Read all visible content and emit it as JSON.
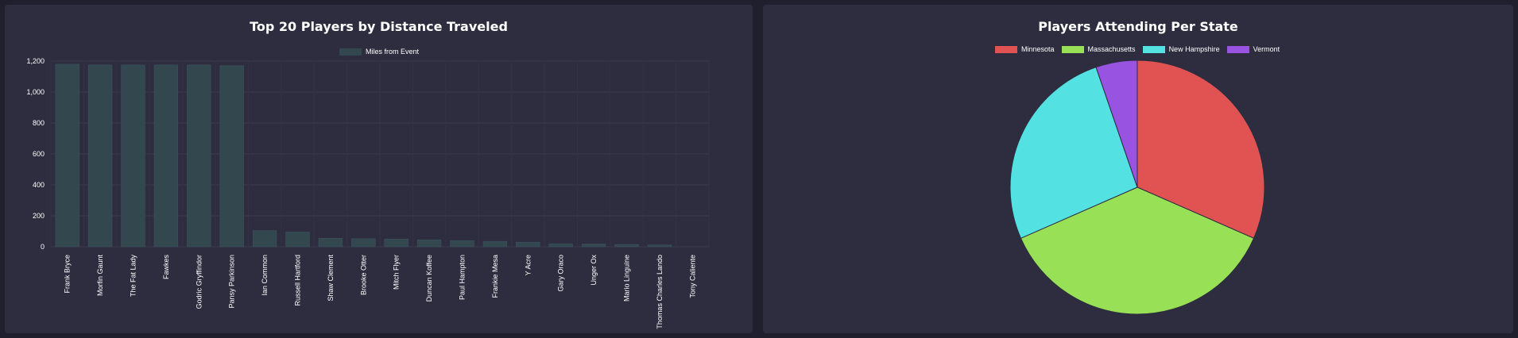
{
  "chart_data": [
    {
      "type": "bar",
      "title": "Top 20 Players by Distance Traveled",
      "ylim": [
        0,
        1200
      ],
      "yticks": [
        0,
        200,
        400,
        600,
        800,
        1000,
        1200
      ],
      "grid": true,
      "legend_position": "top",
      "series": [
        {
          "name": "Miles from Event",
          "color": "#33474f",
          "values": [
            1180,
            1175,
            1175,
            1175,
            1175,
            1170,
            105,
            95,
            55,
            52,
            50,
            45,
            40,
            35,
            30,
            20,
            18,
            15,
            12,
            0
          ]
        }
      ],
      "categories": [
        "Frank Bryce",
        "Morfin Gaunt",
        "The Fat Lady",
        "Fawkes",
        "Godric Gryffindor",
        "Pansy Parkinson",
        "Ian Common",
        "Russell Hartford",
        "Shaw Clement",
        "Brooke Otter",
        "Mitch Flyer",
        "Duncan Koffee",
        "Paul Hampton",
        "Frankie Mesa",
        "Y Acre",
        "Gary Oraco",
        "Unger Ox",
        "Mario Linguine",
        "Thomas Charles Lando",
        "Tony Caliente"
      ]
    },
    {
      "type": "pie",
      "title": "Players Attending Per State",
      "legend_position": "top",
      "categories": [
        "Minnesota",
        "Massachusetts",
        "New Hampshire",
        "Vermont"
      ],
      "values": [
        6,
        7,
        5,
        1
      ],
      "colors": [
        "#e15352",
        "#98e156",
        "#53e1e1",
        "#9853e1"
      ]
    }
  ]
}
